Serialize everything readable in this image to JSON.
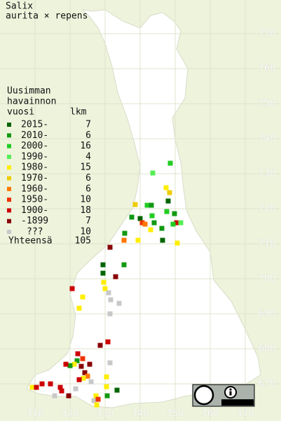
{
  "title": [
    "Salix",
    "aurita × repens"
  ],
  "xlim": [
    300,
    380
  ],
  "ylim": [
    659.6,
    779.6
  ],
  "xticks": [
    310,
    320,
    330,
    340,
    350,
    360,
    370
  ],
  "yticks": [
    670,
    680,
    690,
    700,
    710,
    720,
    730,
    740,
    750,
    760,
    770
  ],
  "legend": {
    "heading": [
      "Uusimman",
      "havainnon",
      "vuosi"
    ],
    "count_heading": "lkm",
    "entries": [
      {
        "label": "2015-",
        "count": 7,
        "color": "#006400"
      },
      {
        "label": "2010-",
        "count": 6,
        "color": "#119911"
      },
      {
        "label": "2000-",
        "count": 16,
        "color": "#22cc22"
      },
      {
        "label": "1990-",
        "count": 4,
        "color": "#55ee55"
      },
      {
        "label": "1980-",
        "count": 15,
        "color": "#ffee00"
      },
      {
        "label": "1970-",
        "count": 6,
        "color": "#eecc00"
      },
      {
        "label": "1960-",
        "count": 6,
        "color": "#ff7700"
      },
      {
        "label": "1950-",
        "count": 10,
        "color": "#ee3300"
      },
      {
        "label": "1900-",
        "count": 18,
        "color": "#cc0000"
      },
      {
        "label": "-1899",
        "count": 7,
        "color": "#880000"
      },
      {
        "label": "???",
        "count": 10,
        "color": "#c8c8c8"
      }
    ],
    "total_label": "Yhteensä",
    "total": 105
  },
  "observations": {
    "points": [
      [
        348.6,
        733,
        2
      ],
      [
        343.6,
        730.2,
        3
      ],
      [
        347.4,
        726,
        4
      ],
      [
        348.4,
        724.6,
        5
      ],
      [
        348,
        722.2,
        0
      ],
      [
        338.6,
        721.2,
        5
      ],
      [
        342,
        721,
        2
      ],
      [
        343.2,
        721,
        1
      ],
      [
        347.6,
        719.2,
        2
      ],
      [
        343.4,
        718,
        2
      ],
      [
        337.6,
        717.6,
        1
      ],
      [
        340,
        717.2,
        0
      ],
      [
        340.6,
        716,
        7
      ],
      [
        341.4,
        715.6,
        6
      ],
      [
        344,
        716,
        1
      ],
      [
        349.8,
        718.6,
        1
      ],
      [
        350.4,
        716,
        8
      ],
      [
        351.6,
        716,
        3
      ],
      [
        349.4,
        715.6,
        2
      ],
      [
        346.2,
        714.4,
        1
      ],
      [
        343,
        714,
        4
      ],
      [
        335.6,
        713,
        1
      ],
      [
        335.4,
        711,
        6
      ],
      [
        339.4,
        711,
        4
      ],
      [
        346.4,
        711,
        0
      ],
      [
        350.6,
        710.2,
        4
      ],
      [
        331.4,
        709,
        9
      ],
      [
        329.4,
        704,
        0
      ],
      [
        335.4,
        704,
        1
      ],
      [
        329.4,
        701.6,
        0
      ],
      [
        333,
        700.6,
        9
      ],
      [
        329.6,
        699,
        4
      ],
      [
        330,
        697.2,
        4
      ],
      [
        320.6,
        697.2,
        8
      ],
      [
        323.6,
        694.8,
        4
      ],
      [
        322.6,
        691.6,
        4
      ],
      [
        331,
        696,
        10
      ],
      [
        331.6,
        694,
        10
      ],
      [
        334,
        693,
        10
      ],
      [
        331.4,
        690,
        10
      ],
      [
        330.8,
        682,
        8
      ],
      [
        328.6,
        681,
        9
      ],
      [
        322.2,
        678.6,
        8
      ],
      [
        323.6,
        677.2,
        7
      ],
      [
        322,
        676.6,
        1
      ],
      [
        321.2,
        675.6,
        4
      ],
      [
        320,
        675.2,
        1
      ],
      [
        323.2,
        675,
        9
      ],
      [
        318.8,
        675.6,
        8
      ],
      [
        325.6,
        675.6,
        9
      ],
      [
        324.2,
        673.2,
        9
      ],
      [
        325,
        672.2,
        6
      ],
      [
        323.8,
        671.6,
        4
      ],
      [
        326,
        670.6,
        10
      ],
      [
        322.6,
        671.2,
        8
      ],
      [
        331.4,
        676,
        10
      ],
      [
        330.4,
        672,
        4
      ],
      [
        330.4,
        669.2,
        4
      ],
      [
        333.4,
        668.2,
        0
      ],
      [
        330.6,
        666.6,
        1
      ],
      [
        327.4,
        666.6,
        4
      ],
      [
        314.4,
        670,
        8
      ],
      [
        312,
        670,
        8
      ],
      [
        309.2,
        669,
        4
      ],
      [
        310.4,
        669,
        8
      ],
      [
        317.2,
        669,
        8
      ],
      [
        317.6,
        668,
        8
      ],
      [
        319.6,
        666.6,
        9
      ],
      [
        315.6,
        666.6,
        10
      ],
      [
        326.8,
        665.2,
        10
      ],
      [
        328,
        665.6,
        7
      ],
      [
        327.6,
        664,
        4
      ],
      [
        321.6,
        668.6,
        10
      ]
    ]
  }
}
